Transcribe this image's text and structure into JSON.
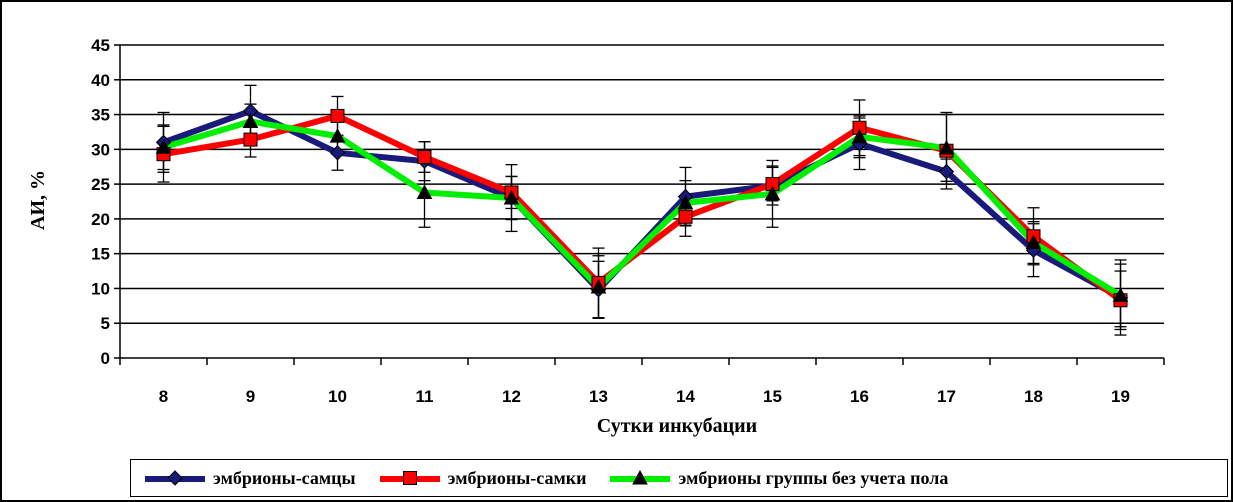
{
  "chart_data": {
    "type": "line",
    "ylabel": "АИ, %",
    "xlabel": "Сутки инкубации",
    "categories": [
      "8",
      "9",
      "10",
      "11",
      "12",
      "13",
      "14",
      "15",
      "16",
      "17",
      "18",
      "19"
    ],
    "ylim": [
      0,
      45
    ],
    "yticks": [
      "0",
      "5",
      "10",
      "15",
      "20",
      "25",
      "30",
      "35",
      "40",
      "45"
    ],
    "grid": "horizontal",
    "legend_position": "bottom",
    "series": [
      {
        "name": "эмбрионы-самцы",
        "color": "#1a1a7a",
        "marker": "diamond",
        "values": [
          31.0,
          35.5,
          29.5,
          28.3,
          23.0,
          9.8,
          23.2,
          24.8,
          30.8,
          26.8,
          15.5,
          8.7
        ],
        "errors": [
          4.3,
          3.7,
          2.5,
          2.8,
          3.1,
          4.1,
          4.2,
          2.8,
          3.7,
          1.8,
          3.8,
          5.4
        ]
      },
      {
        "name": "эмбрионы-самки",
        "color": "#ff0000",
        "marker": "square",
        "values": [
          29.3,
          31.4,
          34.8,
          28.9,
          23.8,
          10.8,
          20.3,
          25.0,
          33.1,
          29.8,
          17.5,
          8.3
        ],
        "errors": [
          4.0,
          2.5,
          2.8,
          2.2,
          2.3,
          5.0,
          2.8,
          2.4,
          4.0,
          5.5,
          4.1,
          4.2
        ]
      },
      {
        "name": "эмбрионы группы без учета пола",
        "color": "#00ee00",
        "marker": "triangle",
        "values": [
          30.3,
          34.0,
          31.9,
          23.8,
          23.0,
          10.2,
          22.3,
          23.6,
          31.8,
          30.2,
          16.6,
          9.0
        ],
        "errors": [
          3.2,
          2.5,
          2.6,
          5.0,
          4.8,
          4.5,
          3.2,
          4.8,
          3.0,
          4.8,
          3.0,
          4.5
        ]
      }
    ]
  }
}
